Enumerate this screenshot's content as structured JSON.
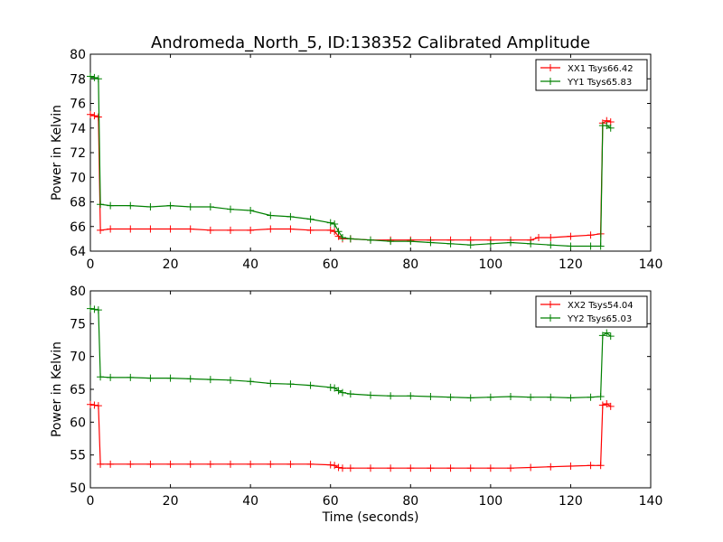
{
  "figure": {
    "title": "Andromeda_North_5, ID:138352 Calibrated Amplitude"
  },
  "chart_data": [
    {
      "type": "line",
      "title": "Andromeda_North_5, ID:138352 Calibrated Amplitude",
      "xlabel": "",
      "ylabel": "Power in Kelvin",
      "xlim": [
        0,
        140
      ],
      "ylim": [
        64,
        80
      ],
      "xticks": [
        0,
        20,
        40,
        60,
        80,
        100,
        120,
        140
      ],
      "yticks": [
        64,
        66,
        68,
        70,
        72,
        74,
        76,
        78,
        80
      ],
      "grid": false,
      "legend_position": "top-right",
      "series": [
        {
          "name": "XX1 Tsys66.42",
          "color": "#ff0000",
          "x": [
            0,
            1,
            2,
            2.5,
            5,
            10,
            15,
            20,
            25,
            30,
            35,
            40,
            45,
            50,
            55,
            60,
            61,
            62,
            63,
            65,
            70,
            75,
            80,
            85,
            90,
            95,
            100,
            105,
            110,
            112,
            115,
            120,
            125,
            127.5,
            128,
            129,
            130
          ],
          "values": [
            75.1,
            75.0,
            74.9,
            65.7,
            65.8,
            65.8,
            65.8,
            65.8,
            65.8,
            65.7,
            65.7,
            65.7,
            65.8,
            65.8,
            65.7,
            65.7,
            65.6,
            65.2,
            65.0,
            65.0,
            64.9,
            64.9,
            64.9,
            64.9,
            64.9,
            64.9,
            64.9,
            64.9,
            64.9,
            65.1,
            65.1,
            65.2,
            65.3,
            65.4,
            74.4,
            74.6,
            74.5
          ]
        },
        {
          "name": "YY1 Tsys65.83",
          "color": "#008000",
          "x": [
            0,
            1,
            2,
            2.5,
            5,
            10,
            15,
            20,
            25,
            30,
            35,
            40,
            45,
            50,
            55,
            60,
            61,
            62,
            63,
            65,
            70,
            75,
            80,
            85,
            90,
            95,
            100,
            105,
            110,
            115,
            120,
            125,
            127.5,
            128,
            129,
            130
          ],
          "values": [
            78.2,
            78.1,
            78.0,
            67.8,
            67.7,
            67.7,
            67.6,
            67.7,
            67.6,
            67.6,
            67.4,
            67.3,
            66.9,
            66.8,
            66.6,
            66.3,
            66.2,
            65.6,
            65.1,
            65.0,
            64.9,
            64.8,
            64.8,
            64.7,
            64.6,
            64.5,
            64.6,
            64.7,
            64.6,
            64.5,
            64.4,
            64.4,
            64.4,
            74.2,
            74.2,
            74.0
          ]
        }
      ]
    },
    {
      "type": "line",
      "title": "",
      "xlabel": "Time (seconds)",
      "ylabel": "Power in Kelvin",
      "xlim": [
        0,
        140
      ],
      "ylim": [
        50,
        80
      ],
      "xticks": [
        0,
        20,
        40,
        60,
        80,
        100,
        120,
        140
      ],
      "yticks": [
        50,
        55,
        60,
        65,
        70,
        75,
        80
      ],
      "grid": false,
      "legend_position": "top-right",
      "series": [
        {
          "name": "XX2 Tsys54.04",
          "color": "#ff0000",
          "x": [
            0,
            1,
            2,
            2.5,
            5,
            10,
            15,
            20,
            25,
            30,
            35,
            40,
            45,
            50,
            55,
            60,
            61,
            62,
            63,
            65,
            70,
            75,
            80,
            85,
            90,
            95,
            100,
            105,
            110,
            115,
            120,
            125,
            127.5,
            128,
            129,
            130
          ],
          "values": [
            62.7,
            62.6,
            62.5,
            53.6,
            53.6,
            53.6,
            53.6,
            53.6,
            53.6,
            53.6,
            53.6,
            53.6,
            53.6,
            53.6,
            53.6,
            53.5,
            53.4,
            53.1,
            53.0,
            53.0,
            53.0,
            53.0,
            53.0,
            53.0,
            53.0,
            53.0,
            53.0,
            53.0,
            53.1,
            53.2,
            53.3,
            53.4,
            53.4,
            62.6,
            62.8,
            62.4
          ]
        },
        {
          "name": "YY2 Tsys65.03",
          "color": "#008000",
          "x": [
            0,
            1,
            2,
            2.5,
            5,
            10,
            15,
            20,
            25,
            30,
            35,
            40,
            45,
            50,
            55,
            60,
            61,
            62,
            63,
            65,
            70,
            75,
            80,
            85,
            90,
            95,
            100,
            105,
            110,
            115,
            120,
            125,
            127.5,
            128,
            129,
            130
          ],
          "values": [
            77.3,
            77.2,
            77.1,
            66.9,
            66.8,
            66.8,
            66.7,
            66.7,
            66.6,
            66.5,
            66.4,
            66.2,
            65.9,
            65.8,
            65.6,
            65.3,
            65.2,
            64.8,
            64.5,
            64.3,
            64.1,
            64.0,
            64.0,
            63.9,
            63.8,
            63.7,
            63.8,
            63.9,
            63.8,
            63.8,
            63.7,
            63.8,
            63.9,
            73.2,
            73.6,
            73.1
          ]
        }
      ]
    }
  ]
}
